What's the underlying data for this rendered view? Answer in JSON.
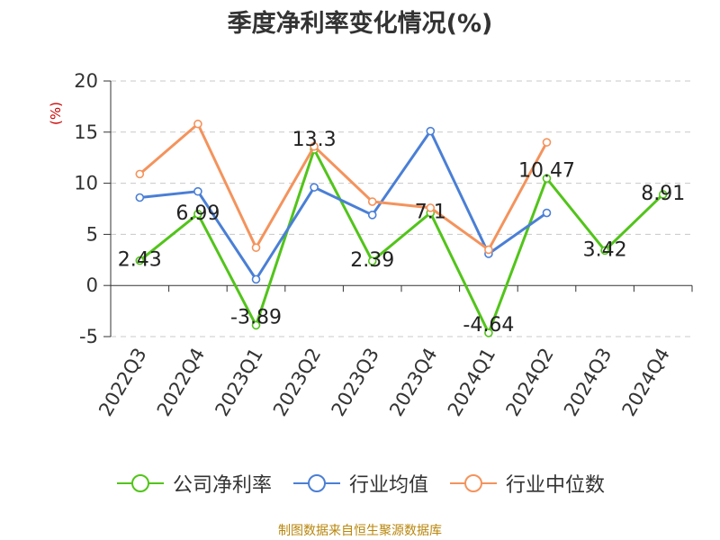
{
  "chart_data": {
    "type": "line",
    "title": "季度净利率变化情况(%)",
    "ylabel": "(%)",
    "categories": [
      "2022Q3",
      "2022Q4",
      "2023Q1",
      "2023Q2",
      "2023Q3",
      "2023Q4",
      "2024Q1",
      "2024Q2",
      "2024Q3",
      "2024Q4"
    ],
    "ylim": [
      -5,
      20
    ],
    "yticks": [
      -5,
      0,
      5,
      10,
      15,
      20
    ],
    "grid": true,
    "legend_position": "bottom",
    "series": [
      {
        "name": "公司净利率",
        "color": "#52c41a",
        "values": [
          2.43,
          6.99,
          -3.89,
          13.3,
          2.39,
          7.1,
          -4.64,
          10.47,
          3.42,
          8.91
        ],
        "labels": [
          "2.43",
          "6.99",
          "-3.89",
          "13.3",
          "2.39",
          "7.1",
          "-4.64",
          "10.47",
          "3.42",
          "8.91"
        ]
      },
      {
        "name": "行业均值",
        "color": "#4a7fd6",
        "values": [
          8.6,
          9.2,
          0.6,
          9.6,
          6.9,
          15.1,
          3.1,
          7.1,
          null,
          null
        ]
      },
      {
        "name": "行业中位数",
        "color": "#f4935c",
        "values": [
          10.9,
          15.8,
          3.7,
          13.6,
          8.2,
          7.6,
          3.5,
          14.0,
          null,
          null
        ]
      }
    ]
  },
  "footer": {
    "source": "制图数据来自恒生聚源数据库"
  }
}
